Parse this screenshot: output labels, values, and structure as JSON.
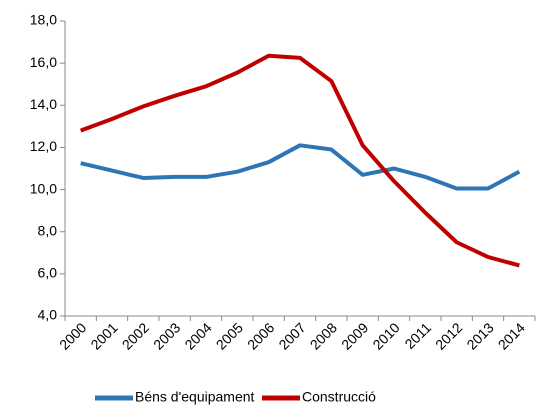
{
  "chart_data": {
    "type": "line",
    "categories": [
      "2000",
      "2001",
      "2002",
      "2003",
      "2004",
      "2005",
      "2006",
      "2007",
      "2008",
      "2009",
      "2010",
      "2011",
      "2012",
      "2013",
      "2014"
    ],
    "series": [
      {
        "name": "Béns d'equipament",
        "color": "#2e75b6",
        "values": [
          11.25,
          10.9,
          10.55,
          10.6,
          10.6,
          10.85,
          11.3,
          12.1,
          11.9,
          10.7,
          11.0,
          10.6,
          10.05,
          10.05,
          10.85
        ]
      },
      {
        "name": "Construcció",
        "color": "#c00000",
        "values": [
          12.8,
          13.35,
          13.95,
          14.45,
          14.9,
          15.55,
          16.35,
          16.25,
          15.15,
          12.1,
          10.4,
          8.9,
          7.5,
          6.8,
          6.4
        ]
      }
    ],
    "ylim": [
      4,
      18
    ],
    "yticks": [
      {
        "value": 4,
        "label": "4,0"
      },
      {
        "value": 6,
        "label": "6,0"
      },
      {
        "value": 8,
        "label": "8,0"
      },
      {
        "value": 10,
        "label": "10,0"
      },
      {
        "value": 12,
        "label": "12,0"
      },
      {
        "value": 14,
        "label": "14,0"
      },
      {
        "value": 16,
        "label": "16,0"
      },
      {
        "value": 18,
        "label": "18,0"
      }
    ],
    "grid": false,
    "legend": "bottom"
  }
}
